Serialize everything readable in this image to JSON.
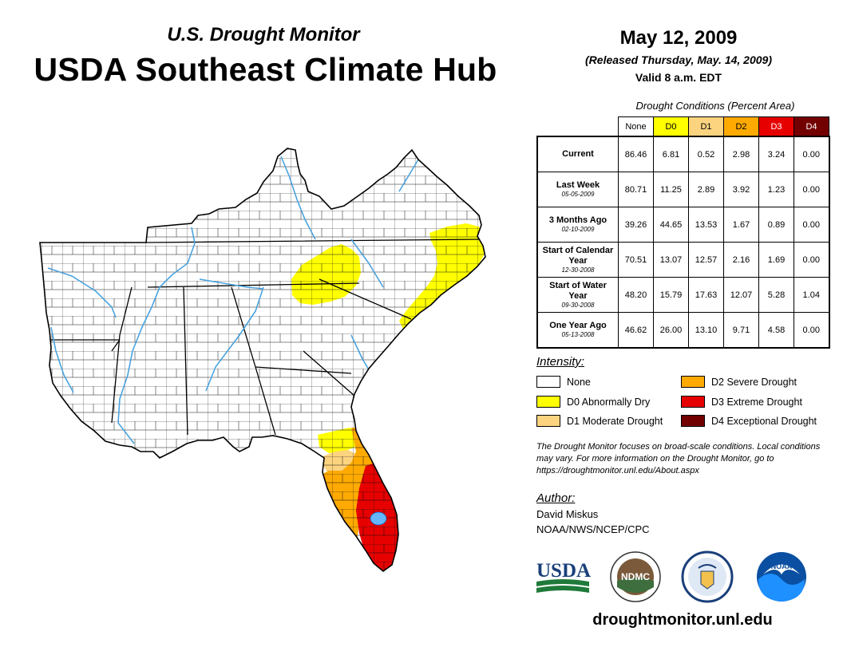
{
  "header": {
    "subtitle": "U.S. Drought Monitor",
    "title": "USDA Southeast Climate Hub",
    "date": "May 12, 2009",
    "released": "(Released Thursday, May. 14, 2009)",
    "valid": "Valid 8 a.m. EDT"
  },
  "table": {
    "caption": "Drought Conditions (Percent Area)",
    "columns": [
      "None",
      "D0",
      "D1",
      "D2",
      "D3",
      "D4"
    ],
    "rows": [
      {
        "label": "Current",
        "date": "",
        "values": [
          "86.46",
          "6.81",
          "0.52",
          "2.98",
          "3.24",
          "0.00"
        ]
      },
      {
        "label": "Last Week",
        "date": "05-05-2009",
        "values": [
          "80.71",
          "11.25",
          "2.89",
          "3.92",
          "1.23",
          "0.00"
        ]
      },
      {
        "label": "3 Months Ago",
        "date": "02-10-2009",
        "values": [
          "39.26",
          "44.65",
          "13.53",
          "1.67",
          "0.89",
          "0.00"
        ]
      },
      {
        "label": "Start of Calendar Year",
        "date": "12-30-2008",
        "values": [
          "70.51",
          "13.07",
          "12.57",
          "2.16",
          "1.69",
          "0.00"
        ]
      },
      {
        "label": "Start of Water Year",
        "date": "09-30-2008",
        "values": [
          "48.20",
          "15.79",
          "17.63",
          "12.07",
          "5.28",
          "1.04"
        ]
      },
      {
        "label": "One Year Ago",
        "date": "05-13-2008",
        "values": [
          "46.62",
          "26.00",
          "13.10",
          "9.71",
          "4.58",
          "0.00"
        ]
      }
    ]
  },
  "legend": {
    "title": "Intensity:",
    "items": [
      {
        "label": "None",
        "color": "#ffffff"
      },
      {
        "label": "D0 Abnormally Dry",
        "color": "#ffff00"
      },
      {
        "label": "D1 Moderate Drought",
        "color": "#fcd37f"
      },
      {
        "label": "D2 Severe Drought",
        "color": "#ffaa00"
      },
      {
        "label": "D3 Extreme Drought",
        "color": "#e60000"
      },
      {
        "label": "D4 Exceptional Drought",
        "color": "#730000"
      }
    ]
  },
  "note": "The Drought Monitor focuses on broad-scale conditions. Local conditions may vary. For more information on the Drought Monitor, go to https://droughtmonitor.unl.edu/About.aspx",
  "author": {
    "title": "Author:",
    "name": "David Miskus",
    "org": "NOAA/NWS/NCEP/CPC"
  },
  "logos": {
    "usda": "USDA",
    "ndmc": "NDMC",
    "noaa": "NOAA"
  },
  "website": "droughtmonitor.unl.edu",
  "colors": {
    "river": "#4aa3df",
    "d0": "#ffff00",
    "d1": "#fcd37f",
    "d2": "#ffaa00",
    "d3": "#e60000"
  }
}
